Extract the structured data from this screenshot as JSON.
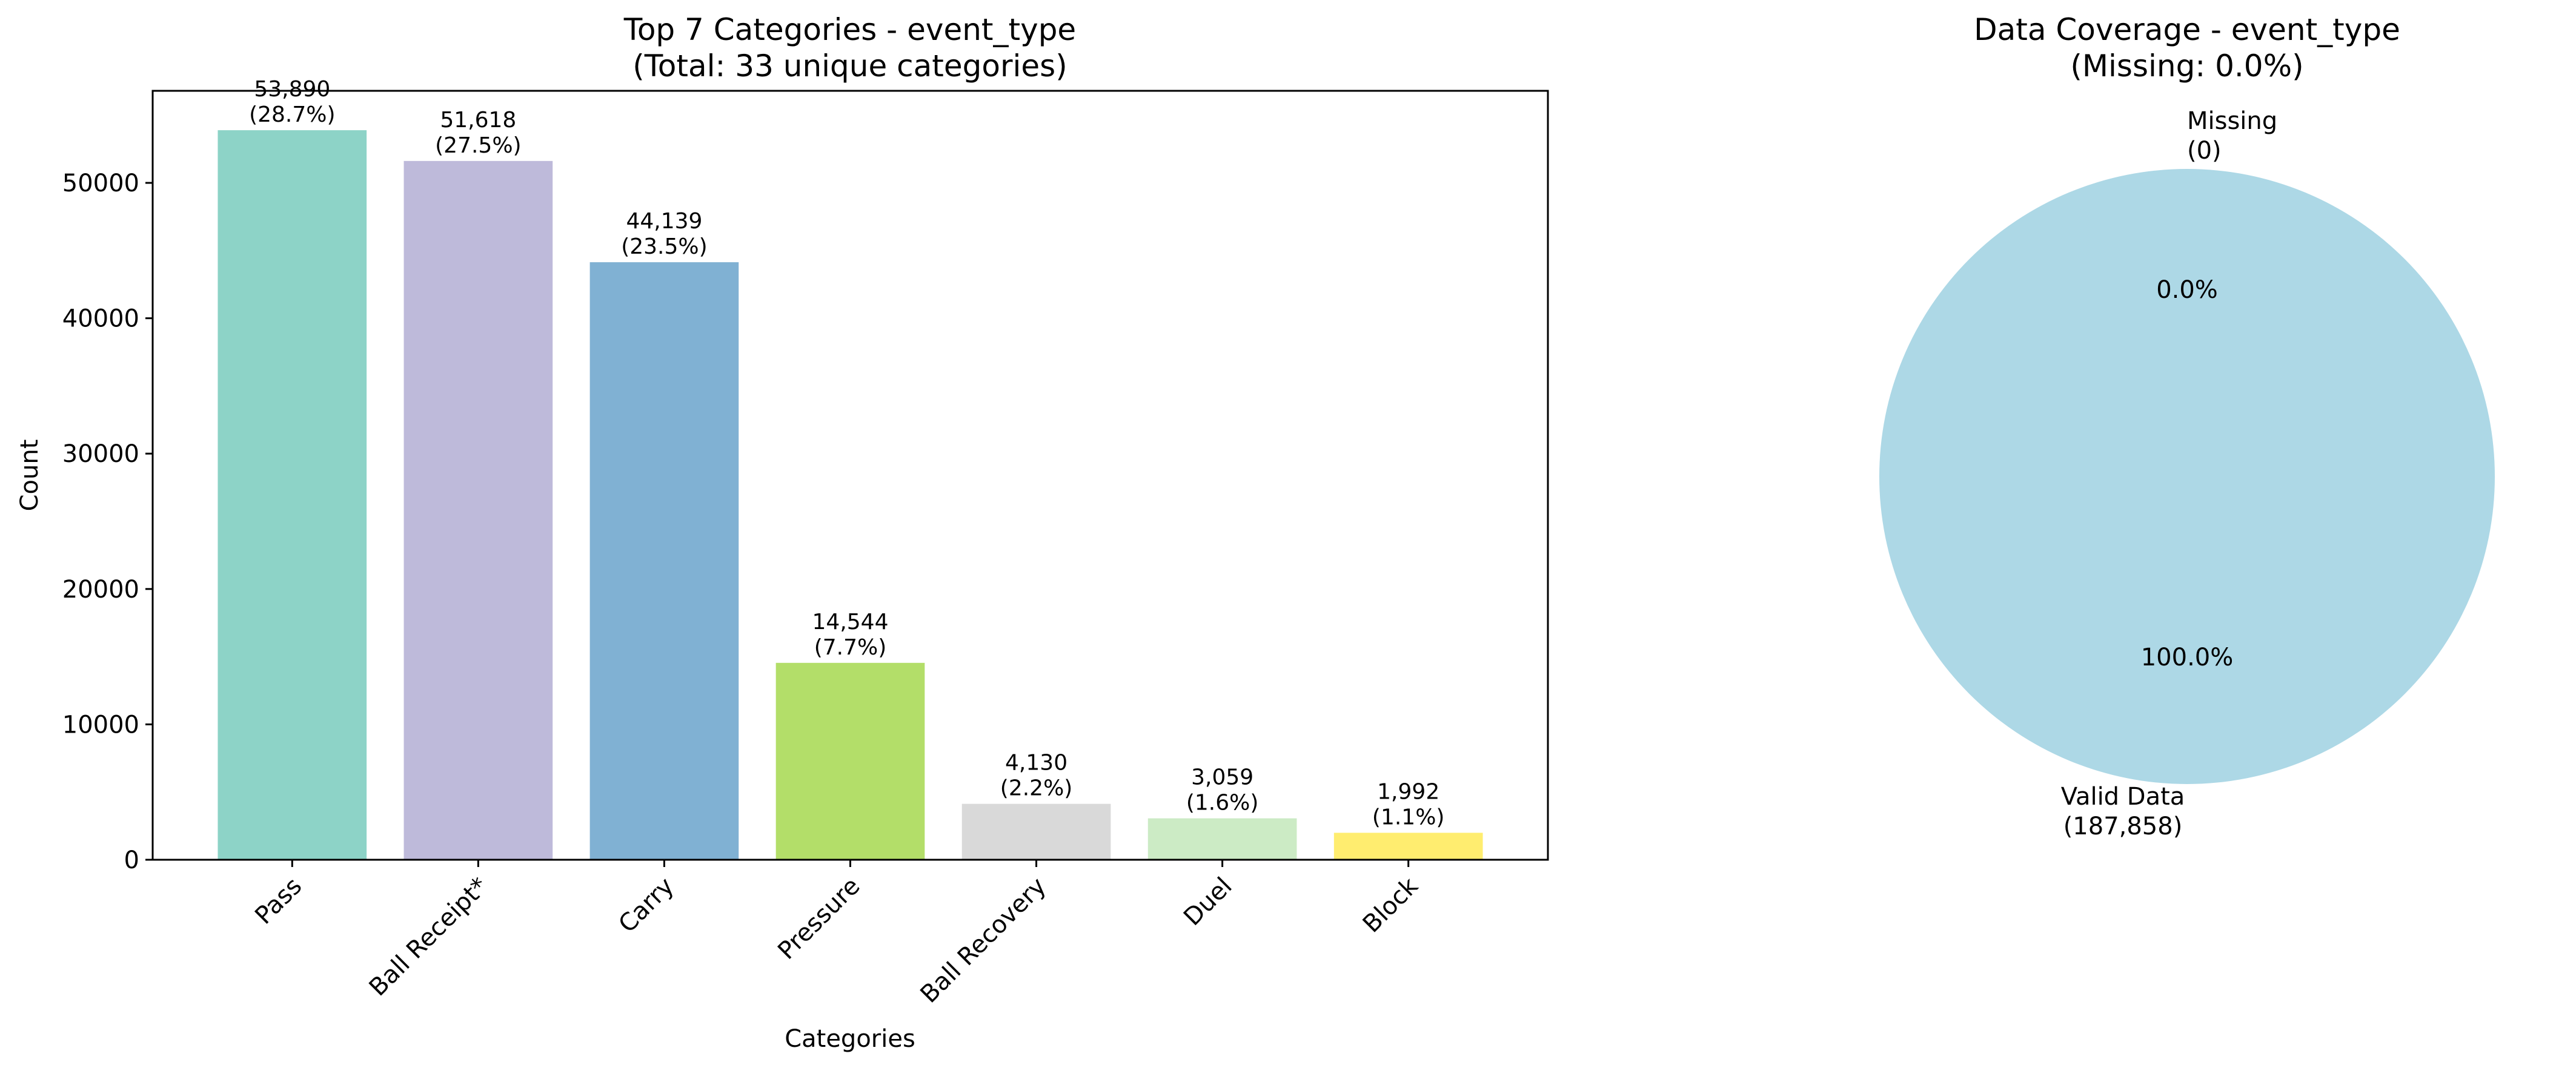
{
  "chart_data": [
    {
      "type": "bar",
      "title": "Top 7 Categories - event_type",
      "subtitle": "(Total: 33 unique categories)",
      "xlabel": "Categories",
      "ylabel": "Count",
      "ylim": [
        0,
        56800
      ],
      "yticks": [
        0,
        10000,
        20000,
        30000,
        40000,
        50000
      ],
      "categories": [
        "Pass",
        "Ball Receipt*",
        "Carry",
        "Pressure",
        "Ball Recovery",
        "Duel",
        "Block"
      ],
      "values": [
        53890,
        51618,
        44139,
        14544,
        4130,
        3059,
        1992
      ],
      "value_labels": [
        "53,890",
        "51,618",
        "44,139",
        "14,544",
        "4,130",
        "3,059",
        "1,992"
      ],
      "percent_labels": [
        "(28.7%)",
        "(27.5%)",
        "(23.5%)",
        "(7.7%)",
        "(2.2%)",
        "(1.6%)",
        "(1.1%)"
      ],
      "colors": [
        "#8dd3c7",
        "#bebada",
        "#80b1d3",
        "#b3de69",
        "#d9d9d9",
        "#ccebc5",
        "#ffed6f"
      ],
      "grid": false
    },
    {
      "type": "pie",
      "title": "Data Coverage - event_type",
      "subtitle": "(Missing: 0.0%)",
      "slices": [
        {
          "label": "Missing",
          "count_label": "(0)",
          "value": 0,
          "percent_label": "0.0%",
          "color": "#f08080"
        },
        {
          "label": "Valid Data",
          "count_label": "(187,858)",
          "value": 187858,
          "percent_label": "100.0%",
          "color": "#add8e6"
        }
      ]
    }
  ]
}
